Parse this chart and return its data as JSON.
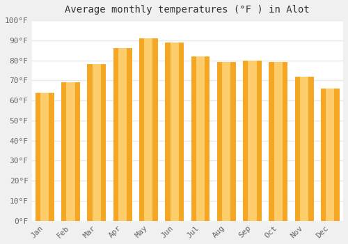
{
  "title": "Average monthly temperatures (°F ) in Alot",
  "months": [
    "Jan",
    "Feb",
    "Mar",
    "Apr",
    "May",
    "Jun",
    "Jul",
    "Aug",
    "Sep",
    "Oct",
    "Nov",
    "Dec"
  ],
  "values": [
    64,
    69,
    78,
    86,
    91,
    89,
    82,
    79,
    80,
    79,
    72,
    66
  ],
  "bar_color_left": "#F5A623",
  "bar_color_center": "#FFD47A",
  "bar_color_right": "#F5A623",
  "ylim": [
    0,
    100
  ],
  "yticks": [
    0,
    10,
    20,
    30,
    40,
    50,
    60,
    70,
    80,
    90,
    100
  ],
  "ytick_labels": [
    "0°F",
    "10°F",
    "20°F",
    "30°F",
    "40°F",
    "50°F",
    "60°F",
    "70°F",
    "80°F",
    "90°F",
    "100°F"
  ],
  "background_color": "#f0f0f0",
  "plot_bg_color": "#ffffff",
  "grid_color": "#e8e8e8",
  "title_fontsize": 10,
  "tick_fontsize": 8,
  "title_color": "#333333",
  "tick_color": "#666666"
}
